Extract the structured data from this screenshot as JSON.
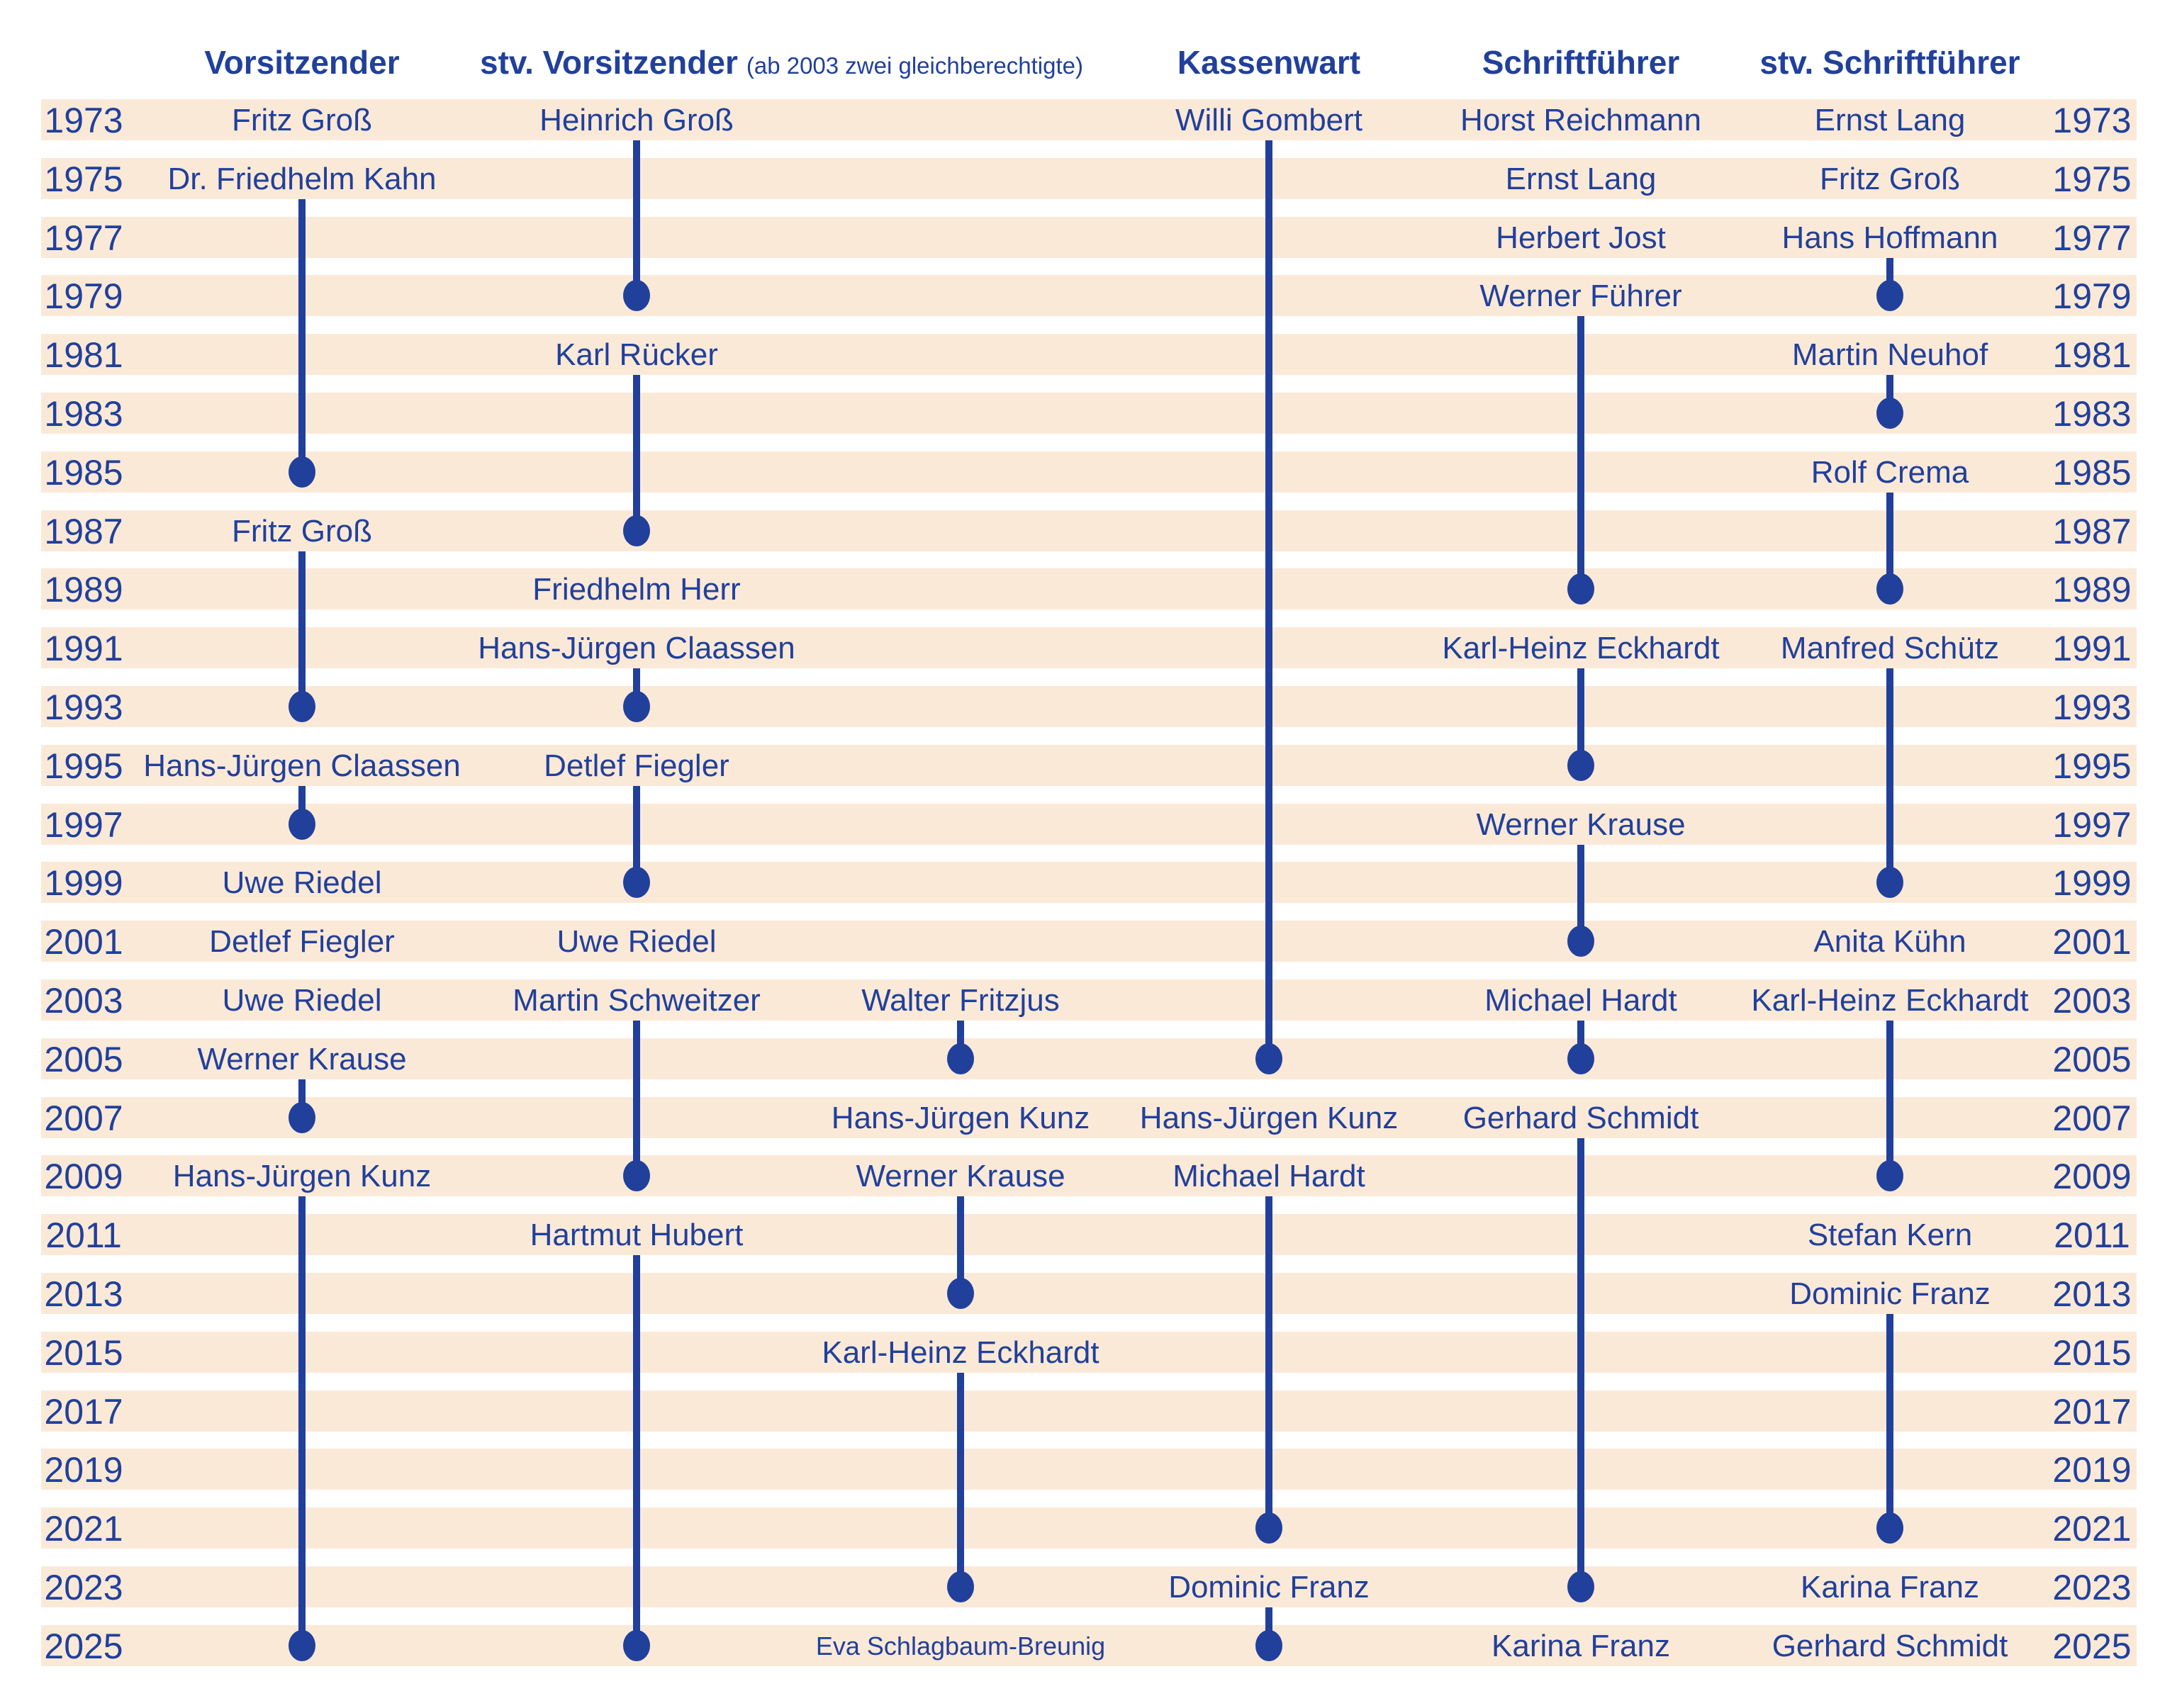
{
  "colors": {
    "background": "#ffffff",
    "stripe": "#fbe9d8",
    "ink": "#21409b"
  },
  "chart_data": {
    "type": "table",
    "title": "",
    "year_axis": {
      "start": 1973,
      "end": 2025,
      "step": 2,
      "sides": [
        "left",
        "right"
      ]
    },
    "columns": [
      {
        "id": "vorsitzender",
        "label": "Vorsitzender"
      },
      {
        "id": "stv_vorsitzender",
        "label": "stv. Vorsitzender",
        "note": "(ab 2003 zwei gleichberechtigte)"
      },
      {
        "id": "stv_vorsitzender_2",
        "label": ""
      },
      {
        "id": "kassenwart",
        "label": "Kassenwart"
      },
      {
        "id": "schriftfuehrer",
        "label": "Schriftführer"
      },
      {
        "id": "stv_schriftfuehrer",
        "label": "stv. Schriftführer"
      }
    ],
    "terms": [
      {
        "column": "vorsitzender",
        "name": "Fritz Groß",
        "start": 1973,
        "end": null
      },
      {
        "column": "vorsitzender",
        "name": "Dr. Friedhelm Kahn",
        "start": 1975,
        "end": 1985
      },
      {
        "column": "vorsitzender",
        "name": "Fritz Groß",
        "start": 1987,
        "end": 1993
      },
      {
        "column": "vorsitzender",
        "name": "Hans-Jürgen Claassen",
        "start": 1995,
        "end": 1997
      },
      {
        "column": "vorsitzender",
        "name": "Uwe Riedel",
        "start": 1999,
        "end": null
      },
      {
        "column": "vorsitzender",
        "name": "Detlef Fiegler",
        "start": 2001,
        "end": null
      },
      {
        "column": "vorsitzender",
        "name": "Uwe Riedel",
        "start": 2003,
        "end": null
      },
      {
        "column": "vorsitzender",
        "name": "Werner Krause",
        "start": 2005,
        "end": 2007
      },
      {
        "column": "vorsitzender",
        "name": "Hans-Jürgen Kunz",
        "start": 2009,
        "end": 2025
      },
      {
        "column": "stv_vorsitzender",
        "name": "Heinrich Groß",
        "start": 1973,
        "end": 1979
      },
      {
        "column": "stv_vorsitzender",
        "name": "Karl Rücker",
        "start": 1981,
        "end": 1987
      },
      {
        "column": "stv_vorsitzender",
        "name": "Friedhelm Herr",
        "start": 1989,
        "end": null
      },
      {
        "column": "stv_vorsitzender",
        "name": "Hans-Jürgen Claassen",
        "start": 1991,
        "end": 1993
      },
      {
        "column": "stv_vorsitzender",
        "name": "Detlef Fiegler",
        "start": 1995,
        "end": 1999
      },
      {
        "column": "stv_vorsitzender",
        "name": "Uwe Riedel",
        "start": 2001,
        "end": null
      },
      {
        "column": "stv_vorsitzender",
        "name": "Martin Schweitzer",
        "start": 2003,
        "end": 2009
      },
      {
        "column": "stv_vorsitzender",
        "name": "Hartmut Hubert",
        "start": 2011,
        "end": 2025
      },
      {
        "column": "stv_vorsitzender_2",
        "name": "Walter Fritzjus",
        "start": 2003,
        "end": 2005
      },
      {
        "column": "stv_vorsitzender_2",
        "name": "Hans-Jürgen Kunz",
        "start": 2007,
        "end": null
      },
      {
        "column": "stv_vorsitzender_2",
        "name": "Werner Krause",
        "start": 2009,
        "end": 2013
      },
      {
        "column": "stv_vorsitzender_2",
        "name": "Karl-Heinz Eckhardt",
        "start": 2015,
        "end": 2023
      },
      {
        "column": "stv_vorsitzender_2",
        "name": "Eva Schlagbaum-Breunig",
        "start": 2025,
        "end": null,
        "small": true
      },
      {
        "column": "kassenwart",
        "name": "Willi Gombert",
        "start": 1973,
        "end": 2005
      },
      {
        "column": "kassenwart",
        "name": "Hans-Jürgen Kunz",
        "start": 2007,
        "end": null
      },
      {
        "column": "kassenwart",
        "name": "Michael Hardt",
        "start": 2009,
        "end": 2021
      },
      {
        "column": "kassenwart",
        "name": "Dominic Franz",
        "start": 2023,
        "end": 2025
      },
      {
        "column": "schriftfuehrer",
        "name": "Horst Reichmann",
        "start": 1973,
        "end": null
      },
      {
        "column": "schriftfuehrer",
        "name": "Ernst Lang",
        "start": 1975,
        "end": null
      },
      {
        "column": "schriftfuehrer",
        "name": "Herbert Jost",
        "start": 1977,
        "end": null
      },
      {
        "column": "schriftfuehrer",
        "name": "Werner Führer",
        "start": 1979,
        "end": 1989
      },
      {
        "column": "schriftfuehrer",
        "name": "Karl-Heinz Eckhardt",
        "start": 1991,
        "end": 1995
      },
      {
        "column": "schriftfuehrer",
        "name": "Werner Krause",
        "start": 1997,
        "end": 2001
      },
      {
        "column": "schriftfuehrer",
        "name": "Michael Hardt",
        "start": 2003,
        "end": 2005
      },
      {
        "column": "schriftfuehrer",
        "name": "Gerhard Schmidt",
        "start": 2007,
        "end": 2023
      },
      {
        "column": "schriftfuehrer",
        "name": "Karina Franz",
        "start": 2025,
        "end": null
      },
      {
        "column": "stv_schriftfuehrer",
        "name": "Ernst Lang",
        "start": 1973,
        "end": null
      },
      {
        "column": "stv_schriftfuehrer",
        "name": "Fritz Groß",
        "start": 1975,
        "end": null
      },
      {
        "column": "stv_schriftfuehrer",
        "name": "Hans Hoffmann",
        "start": 1977,
        "end": 1979
      },
      {
        "column": "stv_schriftfuehrer",
        "name": "Martin Neuhof",
        "start": 1981,
        "end": 1983
      },
      {
        "column": "stv_schriftfuehrer",
        "name": "Rolf Crema",
        "start": 1985,
        "end": 1989
      },
      {
        "column": "stv_schriftfuehrer",
        "name": "Manfred Schütz",
        "start": 1991,
        "end": 1999
      },
      {
        "column": "stv_schriftfuehrer",
        "name": "Anita Kühn",
        "start": 2001,
        "end": null
      },
      {
        "column": "stv_schriftfuehrer",
        "name": "Karl-Heinz Eckhardt",
        "start": 2003,
        "end": 2009
      },
      {
        "column": "stv_schriftfuehrer",
        "name": "Stefan Kern",
        "start": 2011,
        "end": null
      },
      {
        "column": "stv_schriftfuehrer",
        "name": "Dominic Franz",
        "start": 2013,
        "end": 2021
      },
      {
        "column": "stv_schriftfuehrer",
        "name": "Karina Franz",
        "start": 2023,
        "end": null
      },
      {
        "column": "stv_schriftfuehrer",
        "name": "Gerhard Schmidt",
        "start": 2025,
        "end": null
      }
    ]
  }
}
